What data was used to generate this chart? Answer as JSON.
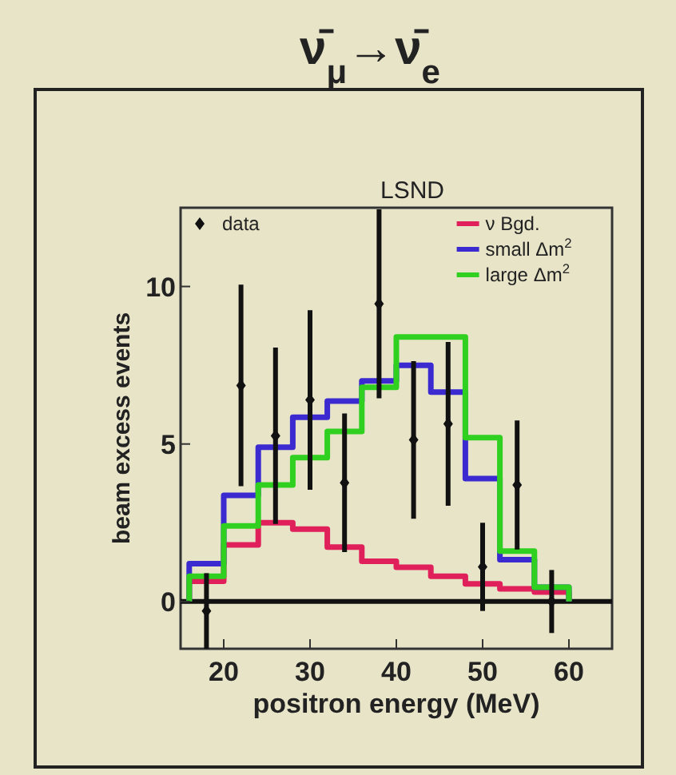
{
  "chart_data": {
    "type": "histogram",
    "title": "ν̄$_{μ}$→ν̄$_{e}$",
    "subtitle": "LSND",
    "xlabel": "positron energy (MeV)",
    "ylabel": "beam excess events",
    "bins": [
      16,
      20,
      24,
      28,
      32,
      36,
      40,
      44,
      48,
      52,
      56,
      60
    ],
    "series": [
      {
        "name": "ν Bgd.",
        "color": "#e0205a",
        "values": [
          0.64,
          1.8,
          2.5,
          2.3,
          1.73,
          1.28,
          1.09,
          0.8,
          0.56,
          0.4,
          0.3
        ]
      },
      {
        "name": "small Δm$^{2}$",
        "color": "#3a2ad0",
        "values": [
          1.2,
          3.37,
          4.9,
          5.85,
          6.36,
          7.0,
          7.5,
          6.65,
          3.9,
          1.33,
          0.45
        ]
      },
      {
        "name": "large Δm$^{2}$",
        "color": "#30d020",
        "values": [
          0.8,
          2.4,
          3.7,
          4.57,
          5.4,
          6.8,
          8.4,
          8.4,
          5.2,
          1.6,
          0.45
        ]
      },
      {
        "name": "data",
        "type": "scatter",
        "color": "#111111",
        "x": [
          18,
          22,
          26,
          30,
          34,
          38,
          42,
          46,
          50,
          54,
          58
        ],
        "values": [
          -0.3,
          6.86,
          5.26,
          6.4,
          3.77,
          9.45,
          5.13,
          5.64,
          1.1,
          3.7,
          0
        ],
        "errors": [
          1.2,
          3.2,
          2.8,
          2.85,
          2.2,
          3.0,
          2.5,
          2.6,
          1.4,
          2.05,
          1.0
        ]
      }
    ],
    "xlim": [
      15,
      65
    ],
    "ylim": [
      -1.5,
      12.5
    ],
    "xticks": [
      20,
      30,
      40,
      50,
      60
    ],
    "yticks": [
      0,
      5,
      10
    ],
    "ref_lines": [
      {
        "axis": "y",
        "value": 0,
        "color": "#111111"
      }
    ],
    "legend": "top",
    "marker": "diamond"
  }
}
